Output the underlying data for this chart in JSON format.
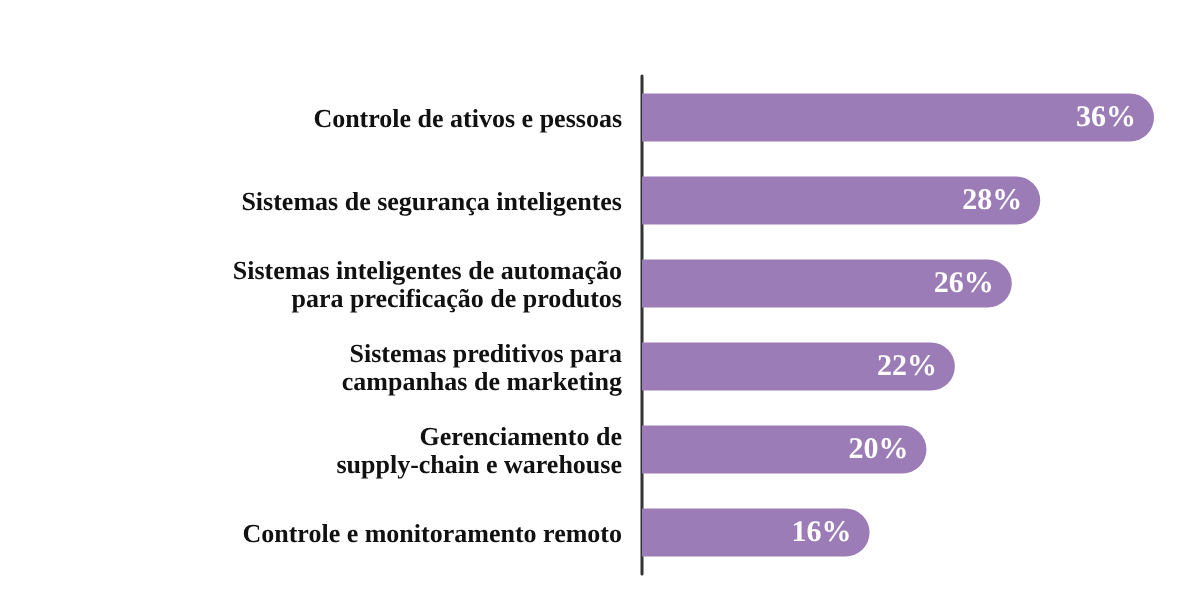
{
  "chart_data": {
    "type": "bar",
    "orientation": "horizontal",
    "categories": [
      "Controle de ativos e pessoas",
      "Sistemas de segurança inteligentes",
      "Sistemas inteligentes de automação\npara precificação de produtos",
      "Sistemas preditivos para\ncampanhas de marketing",
      "Gerenciamento de\nsupply-chain e warehouse",
      "Controle e monitoramento remoto"
    ],
    "values": [
      36,
      28,
      26,
      22,
      20,
      16
    ],
    "color": "#9b7cb6",
    "data_labels": true,
    "value_labels": [
      "36%",
      "28%",
      "26%",
      "22%",
      "20%",
      "16%"
    ]
  }
}
